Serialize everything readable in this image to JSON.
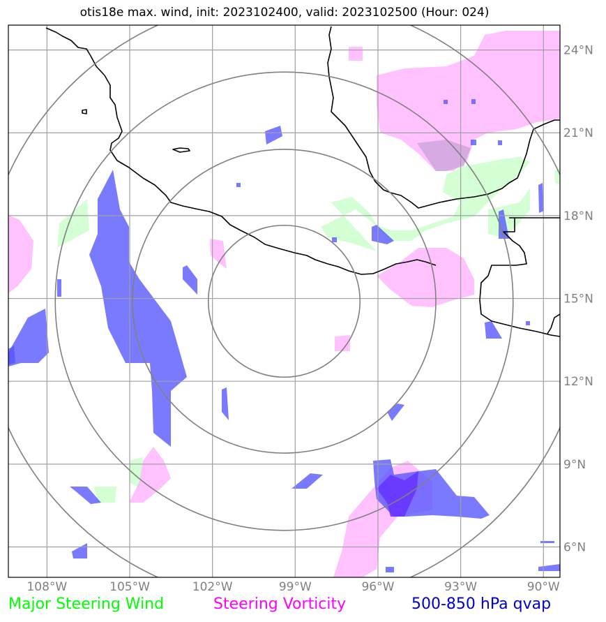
{
  "title": "otis18e max. wind, init: 2023102400, valid: 2023102500 (Hour: 024)",
  "map": {
    "lon_range": [
      -109.4,
      -89.4
    ],
    "lat_range": [
      4.9,
      24.9
    ],
    "center": {
      "lon": -99.4,
      "lat": 14.9
    },
    "range_rings_deg": [
      2.75,
      5.5,
      8.3,
      11.0
    ],
    "gridlines": true
  },
  "lon_ticks": [
    {
      "value": -108,
      "label": "108°W"
    },
    {
      "value": -105,
      "label": "105°W"
    },
    {
      "value": -102,
      "label": "102°W"
    },
    {
      "value": -99,
      "label": "99°W"
    },
    {
      "value": -96,
      "label": "96°W"
    },
    {
      "value": -93,
      "label": "93°W"
    },
    {
      "value": -90,
      "label": "90°W"
    }
  ],
  "lat_ticks": [
    {
      "value": 24,
      "label": "24°N"
    },
    {
      "value": 21,
      "label": "21°N"
    },
    {
      "value": 18,
      "label": "18°N"
    },
    {
      "value": 15,
      "label": "15°N"
    },
    {
      "value": 12,
      "label": "12°N"
    },
    {
      "value": 9,
      "label": "9°N"
    },
    {
      "value": 6,
      "label": "6°N"
    }
  ],
  "legend": {
    "wind": {
      "label": "Major Steering Wind",
      "color": "#00ff00"
    },
    "vorticity": {
      "label": "Steering Vorticity",
      "color": "#ff00ff"
    },
    "qvap": {
      "label": "500-850 hPa qvap",
      "color": "#0000cc"
    }
  },
  "field_colors": {
    "wind": "#ccffcc",
    "vorticity": "#ff99ff",
    "qvap": "#7777ff"
  }
}
